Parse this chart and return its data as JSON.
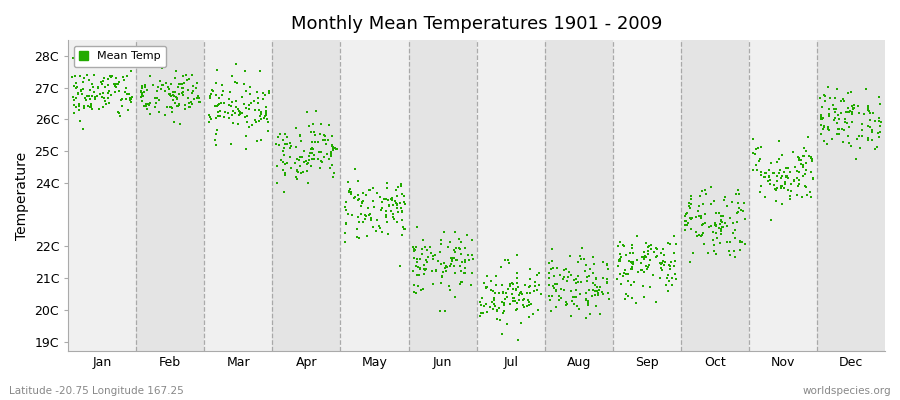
{
  "title": "Monthly Mean Temperatures 1901 - 2009",
  "ylabel": "Temperature",
  "xlabel_labels": [
    "Jan",
    "Feb",
    "Mar",
    "Apr",
    "May",
    "Jun",
    "Jul",
    "Aug",
    "Sep",
    "Oct",
    "Nov",
    "Dec"
  ],
  "ytick_labels": [
    "19C",
    "20C",
    "21C",
    "22C",
    "24C",
    "25C",
    "26C",
    "27C",
    "28C"
  ],
  "ytick_values": [
    19,
    20,
    21,
    22,
    24,
    25,
    26,
    27,
    28
  ],
  "ylim": [
    18.7,
    28.5
  ],
  "background_color": "#ffffff",
  "plot_bg_color": "#ffffff",
  "dot_color": "#22aa00",
  "dot_size": 3,
  "legend_label": "Mean Temp",
  "subtitle": "Latitude -20.75 Longitude 167.25",
  "watermark": "worldspecies.org",
  "monthly_means": [
    26.8,
    26.75,
    26.4,
    25.0,
    23.2,
    21.4,
    20.5,
    20.7,
    21.4,
    22.8,
    24.3,
    26.0
  ],
  "monthly_stds": [
    0.42,
    0.42,
    0.48,
    0.48,
    0.52,
    0.5,
    0.5,
    0.48,
    0.52,
    0.6,
    0.52,
    0.48
  ],
  "n_years": 109,
  "seed": 42,
  "dashed_line_color": "#999999",
  "stripe_light": "#f0f0f0",
  "stripe_dark": "#e4e4e4"
}
